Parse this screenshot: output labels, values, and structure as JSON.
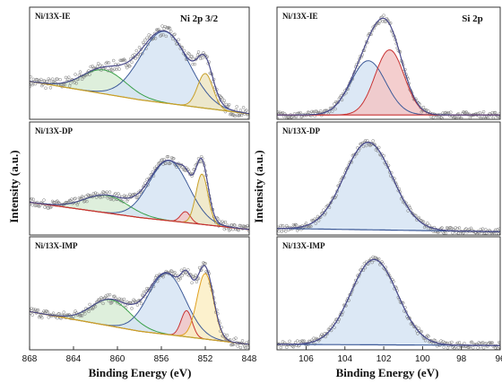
{
  "chart_data": [
    {
      "type": "line",
      "title": "Ni 2p 3/2",
      "xlabel": "Binding Energy (eV)",
      "ylabel": "Intensity (a.u.)",
      "xlim": [
        868,
        848
      ],
      "x_reversed": true,
      "xticks": [
        "868",
        "864",
        "860",
        "856",
        "852",
        "848"
      ],
      "panels": [
        {
          "label": "Ni/13X-IE",
          "baseline": {
            "name": "background",
            "color": "#c8a02a",
            "points": [
              [
                868,
                0.35
              ],
              [
                858,
                0.18
              ],
              [
                848,
                0.05
              ]
            ]
          },
          "peaks": [
            {
              "name": "satellite",
              "center": 861.2,
              "width": 2.0,
              "height": 0.22,
              "fill": "#d8ecd6",
              "line": "#3aa04a"
            },
            {
              "name": "main",
              "center": 855.7,
              "width": 2.2,
              "height": 0.66,
              "fill": "#d6e4f3",
              "line": "#3d5a98"
            },
            {
              "name": "low",
              "center": 852.0,
              "width": 0.7,
              "height": 0.32,
              "fill": "#eee6c3",
              "line": "#c8a02a"
            }
          ],
          "envelope_color": "#4a4a8a",
          "noise": 0.05
        },
        {
          "label": "Ni/13X-DP",
          "baseline": {
            "name": "background",
            "color": "#c83232",
            "points": [
              [
                868,
                0.3
              ],
              [
                858,
                0.16
              ],
              [
                848,
                0.05
              ]
            ]
          },
          "peaks": [
            {
              "name": "satellite",
              "center": 861.0,
              "width": 2.0,
              "height": 0.16,
              "fill": "#d8ecd6",
              "line": "#3aa04a"
            },
            {
              "name": "main",
              "center": 855.3,
              "width": 1.8,
              "height": 0.55,
              "fill": "#d6e4f3",
              "line": "#3d5a98"
            },
            {
              "name": "mid",
              "center": 853.8,
              "width": 0.45,
              "height": 0.1,
              "fill": "#f2c6c6",
              "line": "#c83232"
            },
            {
              "name": "low",
              "center": 852.3,
              "width": 0.55,
              "height": 0.46,
              "fill": "#eee6c3",
              "line": "#c8a02a"
            }
          ],
          "envelope_color": "#4a4a8a",
          "noise": 0.035
        },
        {
          "label": "Ni/13X-IMP",
          "baseline": {
            "name": "background",
            "color": "#c8a02a",
            "points": [
              [
                868,
                0.35
              ],
              [
                858,
                0.17
              ],
              [
                848,
                0.05
              ]
            ]
          },
          "peaks": [
            {
              "name": "satellite",
              "center": 860.6,
              "width": 1.8,
              "height": 0.24,
              "fill": "#d8ecd6",
              "line": "#3aa04a"
            },
            {
              "name": "main",
              "center": 855.5,
              "width": 1.7,
              "height": 0.56,
              "fill": "#d6e4f3",
              "line": "#3d5a98"
            },
            {
              "name": "mid",
              "center": 853.7,
              "width": 0.5,
              "height": 0.24,
              "fill": "#f2c6c6",
              "line": "#c83232"
            },
            {
              "name": "low",
              "center": 852.0,
              "width": 0.75,
              "height": 0.6,
              "fill": "#fbeec4",
              "line": "#e0a020"
            }
          ],
          "envelope_color": "#4a4a8a",
          "noise": 0.04
        }
      ]
    },
    {
      "type": "line",
      "title": "Si 2p",
      "xlabel": "Binding Energy (eV)",
      "ylabel": "Intensity (a.u.)",
      "xlim": [
        107.5,
        96
      ],
      "x_reversed": true,
      "xticks": [
        "106",
        "104",
        "102",
        "100",
        "98",
        "96"
      ],
      "panels": [
        {
          "label": "Ni/13X-IE",
          "baseline": {
            "name": "background",
            "color": "#c83232",
            "points": [
              [
                107.5,
                0.04
              ],
              [
                96,
                0.04
              ]
            ]
          },
          "peaks": [
            {
              "name": "peak-1",
              "center": 102.8,
              "width": 0.9,
              "height": 0.5,
              "fill": "#d6e4f3",
              "line": "#3d5a98"
            },
            {
              "name": "peak-2",
              "center": 101.7,
              "width": 0.75,
              "height": 0.6,
              "fill": "#f2c6c6",
              "line": "#c83232"
            }
          ],
          "envelope_color": "#4a4a8a",
          "noise": 0.03
        },
        {
          "label": "Ni/13X-DP",
          "baseline": {
            "name": "background",
            "color": "#3d5a98",
            "points": [
              [
                107.5,
                0.06
              ],
              [
                96,
                0.03
              ]
            ]
          },
          "peaks": [
            {
              "name": "peak-1",
              "center": 102.8,
              "width": 1.25,
              "height": 0.8,
              "fill": "#d6e4f3",
              "line": "#3d5a98"
            }
          ],
          "envelope_color": "#4a4a8a",
          "noise": 0.03
        },
        {
          "label": "Ni/13X-IMP",
          "baseline": {
            "name": "background",
            "color": "#3d5a98",
            "points": [
              [
                107.5,
                0.05
              ],
              [
                96,
                0.04
              ]
            ]
          },
          "peaks": [
            {
              "name": "peak-1",
              "center": 102.5,
              "width": 1.2,
              "height": 0.78,
              "fill": "#d6e4f3",
              "line": "#3d5a98"
            }
          ],
          "envelope_color": "#4a4a8a",
          "noise": 0.03
        }
      ]
    }
  ]
}
